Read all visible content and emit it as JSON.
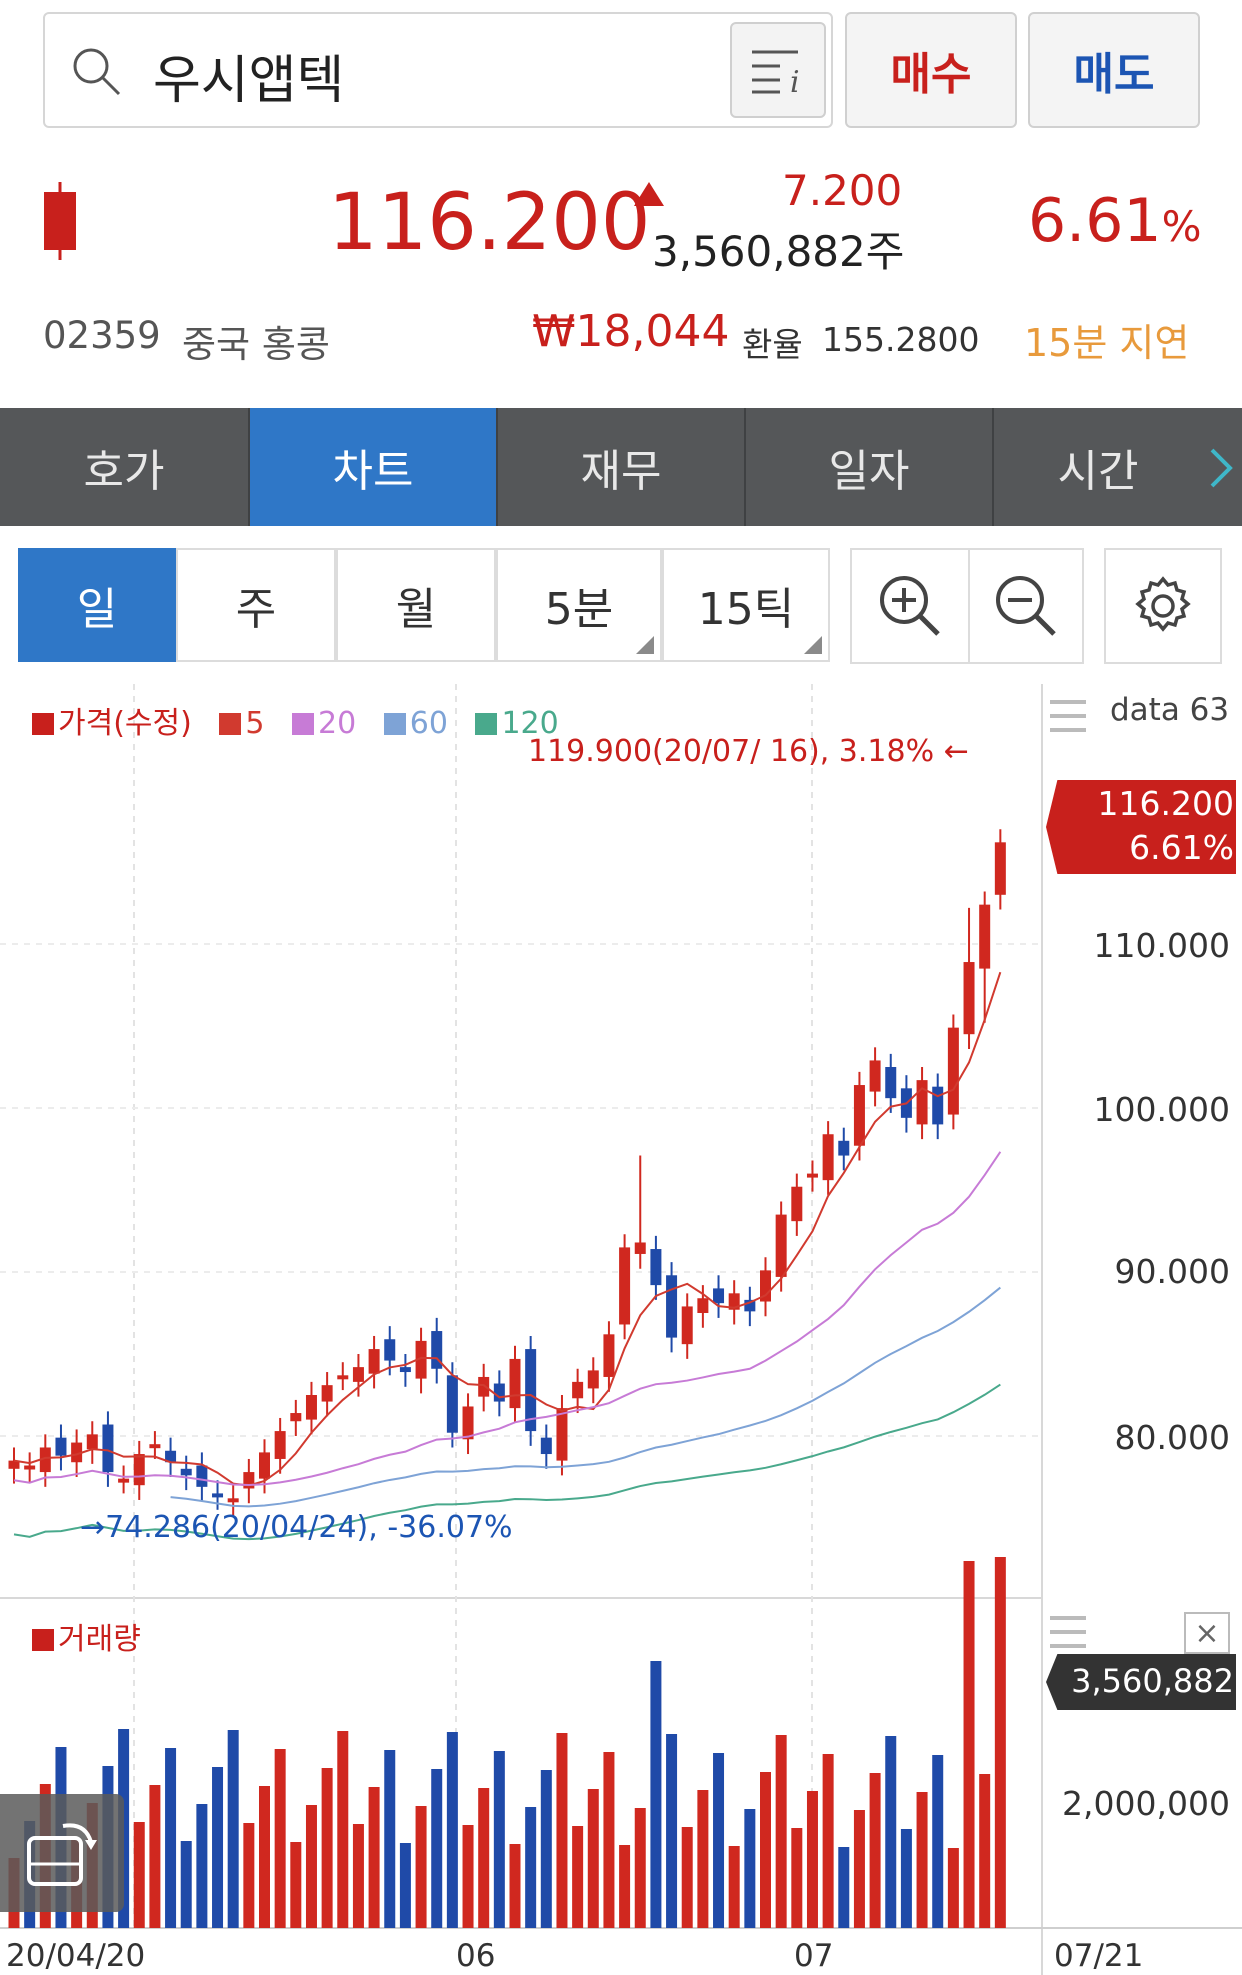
{
  "search": {
    "value": "우시앱텍"
  },
  "buttons": {
    "buy": "매수",
    "sell": "매도"
  },
  "quote": {
    "price": "116.200",
    "change": "7.200",
    "volume": "3,560,882주",
    "change_pct": "6.61",
    "pct_sign": "%",
    "code": "02359",
    "market": "중국 홍콩",
    "krw_price": "₩18,044",
    "fx_label": "환율",
    "fx_rate": "155.2800",
    "delay": "15분 지연"
  },
  "tabs": [
    "호가",
    "차트",
    "재무",
    "일자",
    "시간"
  ],
  "periods": [
    "일",
    "주",
    "월",
    "5분",
    "15틱"
  ],
  "chart": {
    "legend_price": "가격(수정)",
    "ma_labels": [
      "5",
      "20",
      "60",
      "120"
    ],
    "ma_colors": [
      "#d13a2f",
      "#c77bd6",
      "#7ea3d6",
      "#49a98c"
    ],
    "data_label": "data 63",
    "max_note": "119.900(20/07/ 16), 3.18% ←",
    "min_note": "→74.286(20/04/24), -36.07%",
    "current_price": "116.200",
    "current_pct": "6.61%",
    "price_ticks": [
      "110.000",
      "100.000",
      "90.000",
      "80.000"
    ],
    "volume_legend": "거래량",
    "volume_current": "3,560,882",
    "volume_tick": "2,000,000",
    "x_labels": [
      "20/04/20",
      "06",
      "07",
      "07/21"
    ],
    "close_symbol": "×"
  },
  "chart_data": {
    "type": "candlestick",
    "x_range": [
      "20/04/20",
      "20/07/21"
    ],
    "y_price_ticks": [
      80,
      90,
      100,
      110
    ],
    "max": 119.9,
    "min": 74.286,
    "current": 116.2,
    "volume_current": 3560882,
    "colors": {
      "up": "#d0281f",
      "down": "#1f4aa8"
    }
  }
}
